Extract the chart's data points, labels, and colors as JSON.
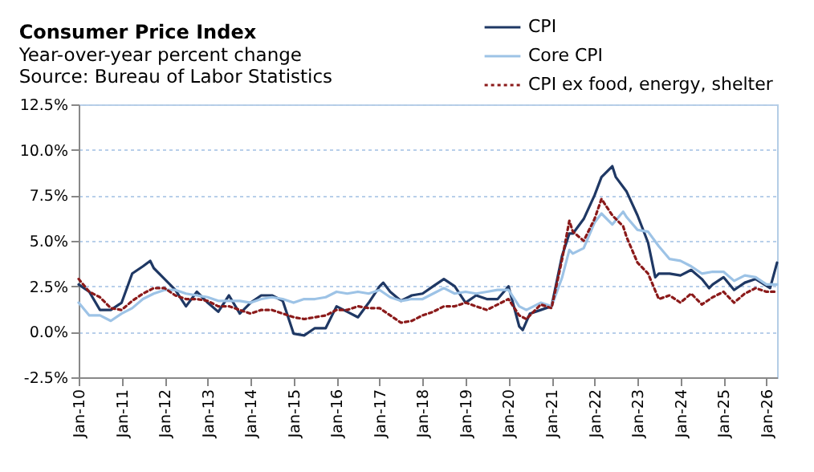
{
  "chart_data": {
    "type": "line",
    "title": "Consumer Price Index",
    "subtitle": "Year-over-year percent change",
    "annotations": [
      "Source: Bureau of Labor Statistics"
    ],
    "xlim": [
      "2010-01",
      "2026-04"
    ],
    "xticks": [
      {
        "value": "2010-01",
        "label": "Jan-10"
      },
      {
        "value": "2011-01",
        "label": "Jan-11"
      },
      {
        "value": "2012-01",
        "label": "Jan-12"
      },
      {
        "value": "2013-01",
        "label": "Jan-13"
      },
      {
        "value": "2014-01",
        "label": "Jan-14"
      },
      {
        "value": "2015-01",
        "label": "Jan-15"
      },
      {
        "value": "2016-01",
        "label": "Jan-16"
      },
      {
        "value": "2017-01",
        "label": "Jan-17"
      },
      {
        "value": "2018-01",
        "label": "Jan-18"
      },
      {
        "value": "2019-01",
        "label": "Jan-19"
      },
      {
        "value": "2020-01",
        "label": "Jan-20"
      },
      {
        "value": "2021-01",
        "label": "Jan-21"
      },
      {
        "value": "2022-01",
        "label": "Jan-22"
      },
      {
        "value": "2023-01",
        "label": "Jan-23"
      },
      {
        "value": "2024-01",
        "label": "Jan-24"
      },
      {
        "value": "2025-01",
        "label": "Jan-25"
      },
      {
        "value": "2026-01",
        "label": "Jan-26"
      }
    ],
    "ylim": [
      -2.5,
      12.5
    ],
    "yticks": [
      {
        "value": -2.5,
        "label": "-2.5%"
      },
      {
        "value": 0,
        "label": "0.0%"
      },
      {
        "value": 2.5,
        "label": "2.5%"
      },
      {
        "value": 5,
        "label": "5.0%"
      },
      {
        "value": 7.5,
        "label": "7.5%"
      },
      {
        "value": 10,
        "label": "10.0%"
      },
      {
        "value": 12.5,
        "label": "12.5%"
      }
    ],
    "grid": "y",
    "legend": "top right",
    "series": [
      {
        "name": "CPI",
        "color": "#1f3864",
        "line_style": "solid",
        "x": [
          "2010-01",
          "2010-04",
          "2010-07",
          "2010-10",
          "2011-01",
          "2011-04",
          "2011-07",
          "2011-09",
          "2011-10",
          "2012-01",
          "2012-04",
          "2012-07",
          "2012-10",
          "2013-01",
          "2013-04",
          "2013-07",
          "2013-10",
          "2014-01",
          "2014-04",
          "2014-07",
          "2014-10",
          "2015-01",
          "2015-04",
          "2015-07",
          "2015-10",
          "2016-01",
          "2016-04",
          "2016-07",
          "2016-10",
          "2017-01",
          "2017-02",
          "2017-04",
          "2017-07",
          "2017-10",
          "2018-01",
          "2018-04",
          "2018-07",
          "2018-10",
          "2019-01",
          "2019-04",
          "2019-07",
          "2019-10",
          "2020-01",
          "2020-04",
          "2020-05",
          "2020-07",
          "2020-10",
          "2021-01",
          "2021-04",
          "2021-06",
          "2021-07",
          "2021-10",
          "2022-01",
          "2022-03",
          "2022-06",
          "2022-07",
          "2022-10",
          "2023-01",
          "2023-04",
          "2023-06",
          "2023-07",
          "2023-10",
          "2024-01",
          "2024-04",
          "2024-07",
          "2024-09",
          "2024-10",
          "2025-01",
          "2025-04",
          "2025-07",
          "2025-10",
          "2026-02",
          "2026-04"
        ],
        "values": [
          2.6,
          2.2,
          1.2,
          1.2,
          1.6,
          3.2,
          3.6,
          3.9,
          3.5,
          2.9,
          2.3,
          1.4,
          2.2,
          1.6,
          1.1,
          2.0,
          1.0,
          1.6,
          2.0,
          2.0,
          1.7,
          -0.1,
          -0.2,
          0.2,
          0.2,
          1.4,
          1.1,
          0.8,
          1.6,
          2.5,
          2.7,
          2.2,
          1.7,
          2.0,
          2.1,
          2.5,
          2.9,
          2.5,
          1.6,
          2.0,
          1.8,
          1.8,
          2.5,
          0.3,
          0.1,
          1.0,
          1.2,
          1.4,
          4.2,
          5.4,
          5.4,
          6.2,
          7.5,
          8.5,
          9.1,
          8.5,
          7.7,
          6.4,
          4.9,
          3.0,
          3.2,
          3.2,
          3.1,
          3.4,
          2.9,
          2.4,
          2.6,
          3.0,
          2.3,
          2.7,
          2.9,
          2.4,
          3.8
        ]
      },
      {
        "name": "Core CPI",
        "color": "#9dc3e6",
        "line_style": "solid",
        "x": [
          "2010-01",
          "2010-04",
          "2010-07",
          "2010-10",
          "2011-01",
          "2011-04",
          "2011-07",
          "2011-10",
          "2012-01",
          "2012-04",
          "2012-07",
          "2012-10",
          "2013-01",
          "2013-04",
          "2013-07",
          "2013-10",
          "2014-01",
          "2014-04",
          "2014-07",
          "2014-10",
          "2015-01",
          "2015-04",
          "2015-07",
          "2015-10",
          "2016-01",
          "2016-04",
          "2016-07",
          "2016-10",
          "2017-01",
          "2017-04",
          "2017-07",
          "2017-10",
          "2018-01",
          "2018-04",
          "2018-07",
          "2018-10",
          "2019-01",
          "2019-04",
          "2019-07",
          "2019-10",
          "2020-01",
          "2020-04",
          "2020-06",
          "2020-10",
          "2021-01",
          "2021-04",
          "2021-06",
          "2021-07",
          "2021-10",
          "2022-01",
          "2022-03",
          "2022-06",
          "2022-09",
          "2022-10",
          "2023-01",
          "2023-04",
          "2023-07",
          "2023-10",
          "2024-01",
          "2024-04",
          "2024-07",
          "2024-10",
          "2025-01",
          "2025-04",
          "2025-07",
          "2025-10",
          "2026-01",
          "2026-04"
        ],
        "values": [
          1.6,
          0.9,
          0.9,
          0.6,
          1.0,
          1.3,
          1.8,
          2.1,
          2.3,
          2.3,
          2.1,
          2.0,
          1.9,
          1.7,
          1.7,
          1.7,
          1.6,
          1.8,
          1.9,
          1.8,
          1.6,
          1.8,
          1.8,
          1.9,
          2.2,
          2.1,
          2.2,
          2.1,
          2.3,
          1.9,
          1.7,
          1.8,
          1.8,
          2.1,
          2.4,
          2.1,
          2.2,
          2.1,
          2.2,
          2.3,
          2.3,
          1.4,
          1.2,
          1.6,
          1.4,
          3.0,
          4.5,
          4.3,
          4.6,
          6.0,
          6.5,
          5.9,
          6.6,
          6.3,
          5.6,
          5.5,
          4.7,
          4.0,
          3.9,
          3.6,
          3.2,
          3.3,
          3.3,
          2.8,
          3.1,
          3.0,
          2.6,
          2.6
        ]
      },
      {
        "name": "CPI ex food, energy, shelter",
        "color": "#8b1a1a",
        "line_style": "dotted",
        "x": [
          "2010-01",
          "2010-04",
          "2010-07",
          "2010-10",
          "2011-01",
          "2011-04",
          "2011-07",
          "2011-10",
          "2012-01",
          "2012-04",
          "2012-07",
          "2012-10",
          "2013-01",
          "2013-04",
          "2013-07",
          "2013-10",
          "2014-01",
          "2014-04",
          "2014-07",
          "2014-10",
          "2015-01",
          "2015-04",
          "2015-07",
          "2015-10",
          "2016-01",
          "2016-04",
          "2016-07",
          "2016-10",
          "2017-01",
          "2017-04",
          "2017-07",
          "2017-10",
          "2018-01",
          "2018-04",
          "2018-07",
          "2018-10",
          "2019-01",
          "2019-04",
          "2019-07",
          "2019-10",
          "2020-01",
          "2020-04",
          "2020-06",
          "2020-10",
          "2021-01",
          "2021-04",
          "2021-06",
          "2021-07",
          "2021-10",
          "2022-01",
          "2022-03",
          "2022-06",
          "2022-09",
          "2022-10",
          "2023-01",
          "2023-04",
          "2023-07",
          "2023-10",
          "2024-01",
          "2024-04",
          "2024-07",
          "2024-10",
          "2025-01",
          "2025-04",
          "2025-07",
          "2025-10",
          "2026-01",
          "2026-04"
        ],
        "values": [
          2.9,
          2.2,
          1.9,
          1.3,
          1.2,
          1.7,
          2.1,
          2.4,
          2.4,
          2.0,
          1.8,
          1.8,
          1.7,
          1.4,
          1.4,
          1.2,
          1.0,
          1.2,
          1.2,
          1.0,
          0.8,
          0.7,
          0.8,
          0.9,
          1.2,
          1.2,
          1.4,
          1.3,
          1.3,
          0.9,
          0.5,
          0.6,
          0.9,
          1.1,
          1.4,
          1.4,
          1.6,
          1.4,
          1.2,
          1.5,
          1.8,
          0.9,
          0.7,
          1.5,
          1.3,
          4.0,
          6.1,
          5.5,
          5.0,
          6.2,
          7.3,
          6.4,
          5.8,
          5.2,
          3.8,
          3.2,
          1.8,
          2.0,
          1.6,
          2.1,
          1.5,
          1.9,
          2.2,
          1.6,
          2.1,
          2.4,
          2.2,
          2.2
        ]
      }
    ]
  }
}
